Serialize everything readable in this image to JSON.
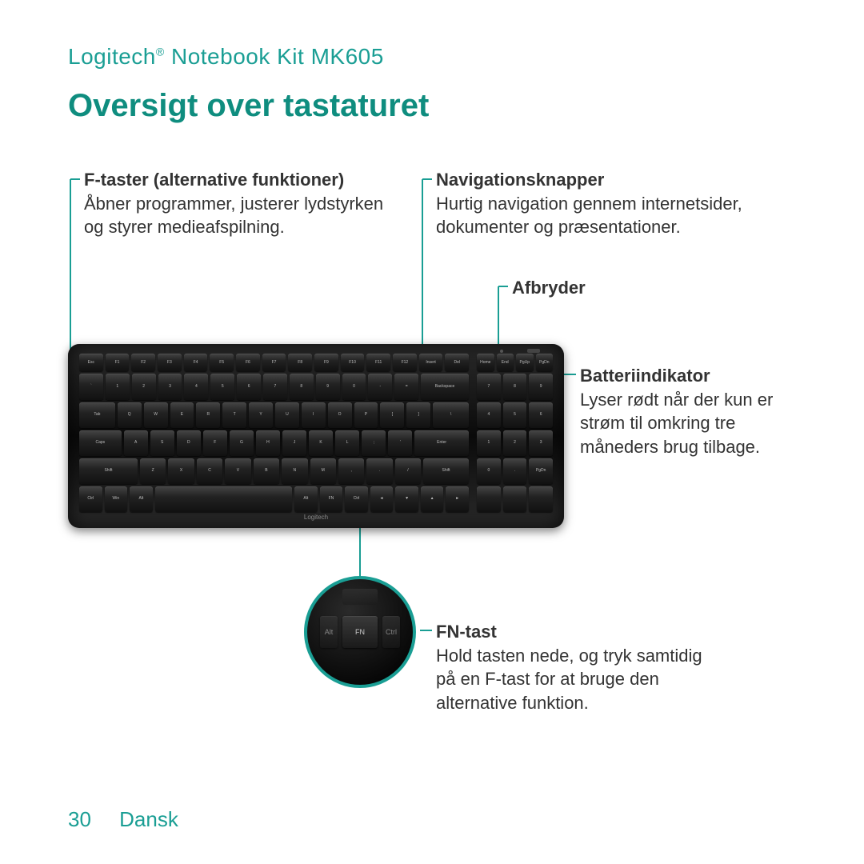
{
  "header": {
    "brand": "Logitech",
    "reg": "®",
    "product": " Notebook Kit MK605"
  },
  "title": "Oversigt over tastaturet",
  "callouts": {
    "fkeys": {
      "heading": "F-taster (alternative funktioner)",
      "body": "Åbner programmer, justerer lydstyrken og styrer medieafspilning."
    },
    "nav": {
      "heading": "Navigationsknapper",
      "body": "Hurtig navigation gennem internetsider, dokumenter og præsentationer."
    },
    "power": {
      "heading": "Afbryder"
    },
    "battery": {
      "heading": "Batteriindikator",
      "body": "Lyser rødt når der kun er strøm til omkring tre måneders brug tilbage."
    },
    "fnkey": {
      "heading": "FN-tast",
      "body": "Hold tasten nede, og tryk samtidig på en F-tast for at bruge den alternative funktion."
    }
  },
  "zoom": {
    "center_label": "FN",
    "left_label": "Alt",
    "right_label": "Ctrl"
  },
  "keyboard": {
    "row_f": [
      "Esc",
      "F1",
      "F2",
      "F3",
      "F4",
      "F5",
      "F6",
      "F7",
      "F8",
      "F9",
      "F10",
      "F11",
      "F12",
      "Insert",
      "Del"
    ],
    "row_nav_top": [
      "Home",
      "End",
      "PgUp",
      "PgDn"
    ],
    "row1": [
      "`",
      "1",
      "2",
      "3",
      "4",
      "5",
      "6",
      "7",
      "8",
      "9",
      "0",
      "-",
      "=",
      "Backspace"
    ],
    "row1_nav": [
      "7",
      "8",
      "9"
    ],
    "row2": [
      "Tab",
      "Q",
      "W",
      "E",
      "R",
      "T",
      "Y",
      "U",
      "I",
      "O",
      "P",
      "[",
      "]",
      "\\"
    ],
    "row2_nav": [
      "4",
      "5",
      "6"
    ],
    "row3": [
      "Caps",
      "A",
      "S",
      "D",
      "F",
      "G",
      "H",
      "J",
      "K",
      "L",
      ";",
      "'",
      "Enter"
    ],
    "row3_nav": [
      "1",
      "2",
      "3"
    ],
    "row4": [
      "Shift",
      "Z",
      "X",
      "C",
      "V",
      "B",
      "N",
      "M",
      ",",
      ".",
      "/",
      "Shift"
    ],
    "row4_nav": [
      "0",
      ".",
      "PgDn"
    ],
    "row5": [
      "Ctrl",
      "Win",
      "Alt",
      "",
      "Alt",
      "FN",
      "Ctrl",
      "◄",
      "▼",
      "▲",
      "►"
    ],
    "brand_label": "Logitech"
  },
  "footer": {
    "page": "30",
    "language": "Dansk"
  },
  "colors": {
    "accent": "#1a9e94",
    "text": "#333333",
    "background": "#ffffff"
  }
}
